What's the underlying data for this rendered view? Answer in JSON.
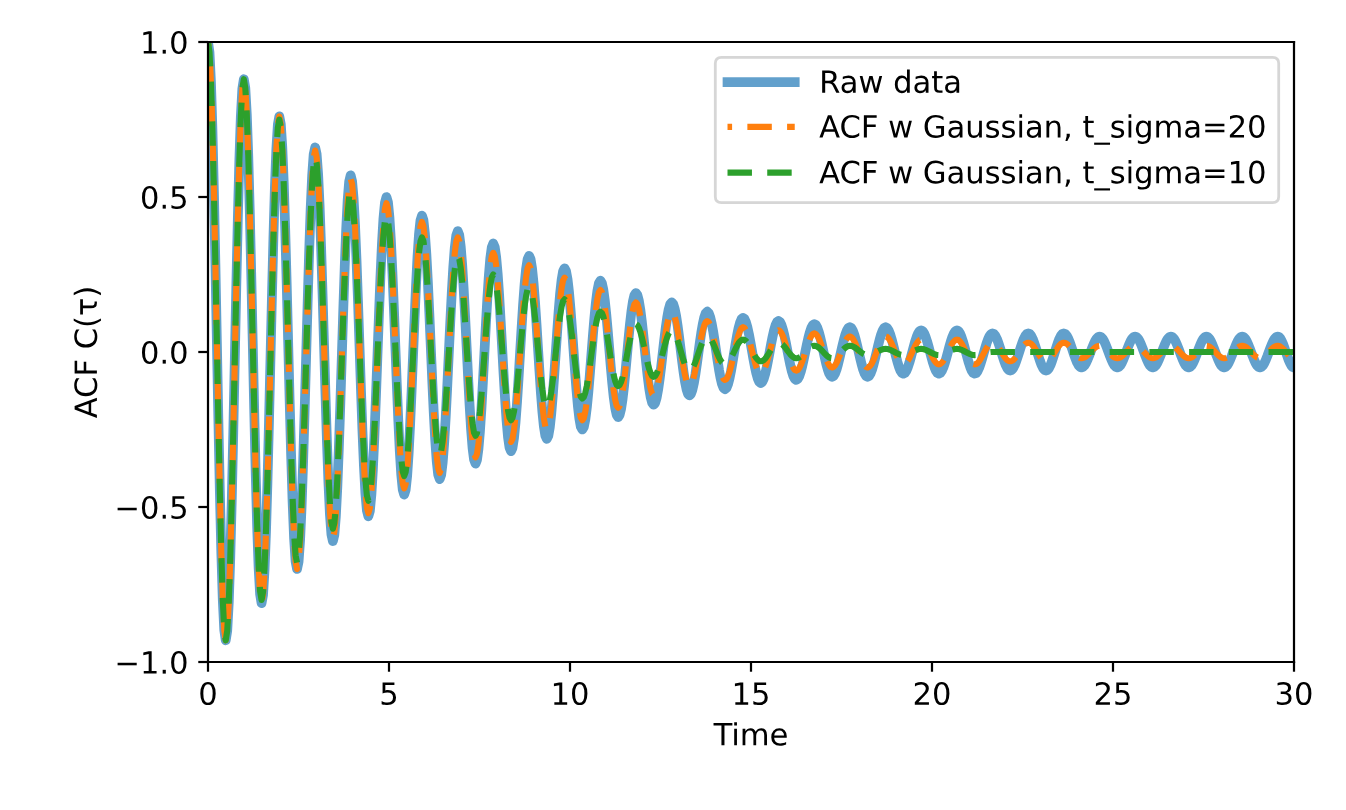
{
  "chart_data": {
    "type": "line",
    "xlabel": "Time",
    "ylabel": "ACF C(τ)",
    "x": [
      0,
      0.49,
      0.99,
      1.48,
      1.97,
      2.46,
      2.96,
      3.45,
      3.94,
      4.43,
      4.93,
      5.42,
      5.91,
      6.4,
      6.9,
      7.39,
      7.88,
      8.37,
      8.87,
      9.36,
      9.85,
      10.34,
      10.84,
      11.33,
      11.82,
      12.31,
      12.81,
      13.3,
      13.79,
      14.28,
      14.78,
      15.27,
      15.76,
      16.25,
      16.75,
      17.24,
      17.73,
      18.22,
      18.72,
      19.21,
      19.7,
      20.19,
      20.69,
      21.18,
      21.67,
      22.16,
      22.66,
      23.15,
      23.64,
      24.13,
      24.63,
      25.12,
      25.61,
      26.1,
      26.6,
      27.09,
      27.58,
      28.07,
      28.57,
      29.06,
      29.55,
      30
    ],
    "series": [
      {
        "name": "Raw data",
        "color": "#62a0cc",
        "line_style": "solid",
        "values": [
          1.0,
          -0.93,
          0.88,
          -0.81,
          0.76,
          -0.7,
          0.66,
          -0.61,
          0.57,
          -0.53,
          0.5,
          -0.46,
          0.44,
          -0.41,
          0.39,
          -0.36,
          0.35,
          -0.32,
          0.31,
          -0.28,
          0.27,
          -0.25,
          0.23,
          -0.21,
          0.19,
          -0.17,
          0.16,
          -0.14,
          0.13,
          -0.12,
          0.11,
          -0.1,
          0.1,
          -0.09,
          0.09,
          -0.08,
          0.08,
          -0.08,
          0.08,
          -0.07,
          0.07,
          -0.07,
          0.07,
          -0.07,
          0.06,
          -0.06,
          0.06,
          -0.06,
          0.06,
          -0.05,
          0.05,
          -0.05,
          0.05,
          -0.05,
          0.05,
          -0.05,
          0.05,
          -0.05,
          0.05,
          -0.05,
          0.05,
          -0.05
        ]
      },
      {
        "name": "ACF w Gaussian, t_sigma=20",
        "color": "#ff7f0e",
        "line_style": "dashed",
        "values": [
          1.0,
          -0.93,
          0.88,
          -0.81,
          0.76,
          -0.7,
          0.65,
          -0.6,
          0.56,
          -0.52,
          0.48,
          -0.44,
          0.42,
          -0.39,
          0.37,
          -0.34,
          0.32,
          -0.29,
          0.28,
          -0.25,
          0.24,
          -0.22,
          0.2,
          -0.18,
          0.16,
          -0.14,
          0.13,
          -0.11,
          0.1,
          -0.09,
          0.08,
          -0.07,
          0.07,
          -0.06,
          0.06,
          -0.05,
          0.05,
          -0.05,
          0.05,
          -0.04,
          0.04,
          -0.04,
          0.04,
          -0.04,
          0.03,
          -0.03,
          0.03,
          -0.03,
          0.03,
          -0.02,
          0.02,
          -0.02,
          0.02,
          -0.02,
          0.02,
          -0.02,
          0.02,
          -0.02,
          0.02,
          -0.02,
          0.02,
          -0.02
        ]
      },
      {
        "name": "ACF w Gaussian, t_sigma=10",
        "color": "#2ca02c",
        "line_style": "dashed",
        "values": [
          1.0,
          -0.93,
          0.88,
          -0.8,
          0.75,
          -0.68,
          0.63,
          -0.57,
          0.52,
          -0.48,
          0.44,
          -0.4,
          0.37,
          -0.33,
          0.31,
          -0.27,
          0.25,
          -0.22,
          0.21,
          -0.18,
          0.17,
          -0.15,
          0.13,
          -0.11,
          0.09,
          -0.08,
          0.07,
          -0.06,
          0.05,
          -0.04,
          0.04,
          -0.03,
          0.03,
          -0.02,
          0.02,
          -0.02,
          0.02,
          -0.01,
          0.01,
          -0.01,
          0.01,
          -0.01,
          0.01,
          -0.01,
          0,
          0,
          0,
          0,
          0,
          0,
          0,
          0,
          0,
          0,
          0,
          0,
          0,
          0,
          0,
          0,
          0,
          0
        ]
      }
    ],
    "xlim": [
      0,
      30
    ],
    "xticks": [
      0,
      5,
      10,
      15,
      20,
      25,
      30
    ],
    "ylim": [
      -1.0,
      1.0
    ],
    "yticks": [
      {
        "value": -1.0,
        "label": "−1.0"
      },
      {
        "value": -0.5,
        "label": "−0.5"
      },
      {
        "value": 0.0,
        "label": "0.0"
      },
      {
        "value": 0.5,
        "label": "0.5"
      },
      {
        "value": 1.0,
        "label": "1.0"
      }
    ],
    "legend": "top right",
    "grid": false
  }
}
